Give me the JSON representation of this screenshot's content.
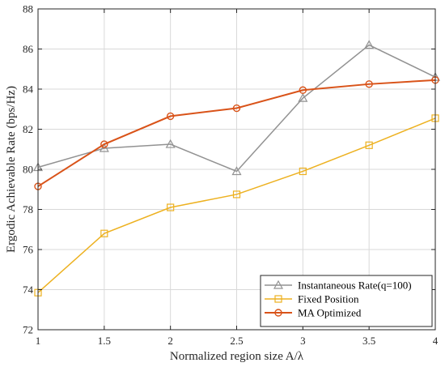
{
  "chart_data": {
    "type": "line",
    "xlabel": "Normalized region size A/λ",
    "ylabel": "Ergodic Achievable Rate (bps/Hz)",
    "x": [
      1,
      1.5,
      2,
      2.5,
      3,
      3.5,
      4
    ],
    "xlim": [
      1,
      4
    ],
    "ylim": [
      72,
      88
    ],
    "xticks": [
      "1",
      "1.5",
      "2",
      "2.5",
      "3",
      "3.5",
      "4"
    ],
    "yticks": [
      "72",
      "74",
      "76",
      "78",
      "80",
      "82",
      "84",
      "86",
      "88"
    ],
    "grid": true,
    "legend_position": "bottom-right",
    "series": [
      {
        "name": "Instantaneous Rate(q=100)",
        "marker": "triangle",
        "color": "#929292",
        "values": [
          80.1,
          81.05,
          81.25,
          79.9,
          83.55,
          86.2,
          84.6
        ]
      },
      {
        "name": "Fixed Position",
        "marker": "square",
        "color": "#EDB120",
        "values": [
          73.85,
          76.8,
          78.1,
          78.75,
          79.9,
          81.2,
          82.55
        ]
      },
      {
        "name": "MA Optimized",
        "marker": "circle",
        "color": "#D95319",
        "values": [
          79.15,
          81.25,
          82.65,
          83.05,
          83.95,
          84.25,
          84.45
        ]
      }
    ]
  }
}
